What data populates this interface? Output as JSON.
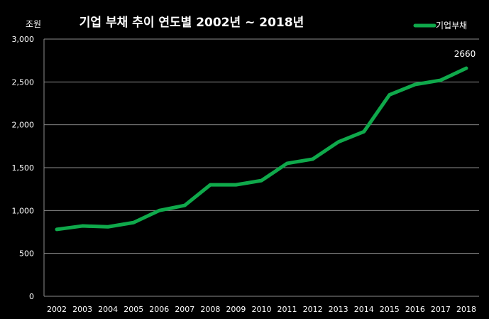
{
  "chart_data": {
    "type": "line",
    "title": "기업 부채 추이 연도별  2002년 ~ 2018년",
    "unit_label": "조원",
    "xlabel": "",
    "ylabel": "",
    "ylim": [
      0,
      3000
    ],
    "yticks": [
      0,
      500,
      1000,
      1500,
      2000,
      2500,
      3000
    ],
    "ytick_labels": [
      "0",
      "500",
      "1,000",
      "1,500",
      "2,000",
      "2,500",
      "3,000"
    ],
    "categories": [
      "2002",
      "2003",
      "2004",
      "2005",
      "2006",
      "2007",
      "2008",
      "2009",
      "2010",
      "2011",
      "2012",
      "2013",
      "2014",
      "2015",
      "2016",
      "2017",
      "2018"
    ],
    "series": [
      {
        "name": "기업부채",
        "color": "#0fa94b",
        "values": [
          780,
          820,
          810,
          860,
          1000,
          1060,
          1300,
          1300,
          1350,
          1550,
          1600,
          1800,
          1920,
          2350,
          2470,
          2520,
          2660
        ]
      }
    ],
    "data_labels": [
      {
        "series": 0,
        "index": 16,
        "text": "2660"
      }
    ],
    "grid": true,
    "legend_position": "top-right"
  }
}
